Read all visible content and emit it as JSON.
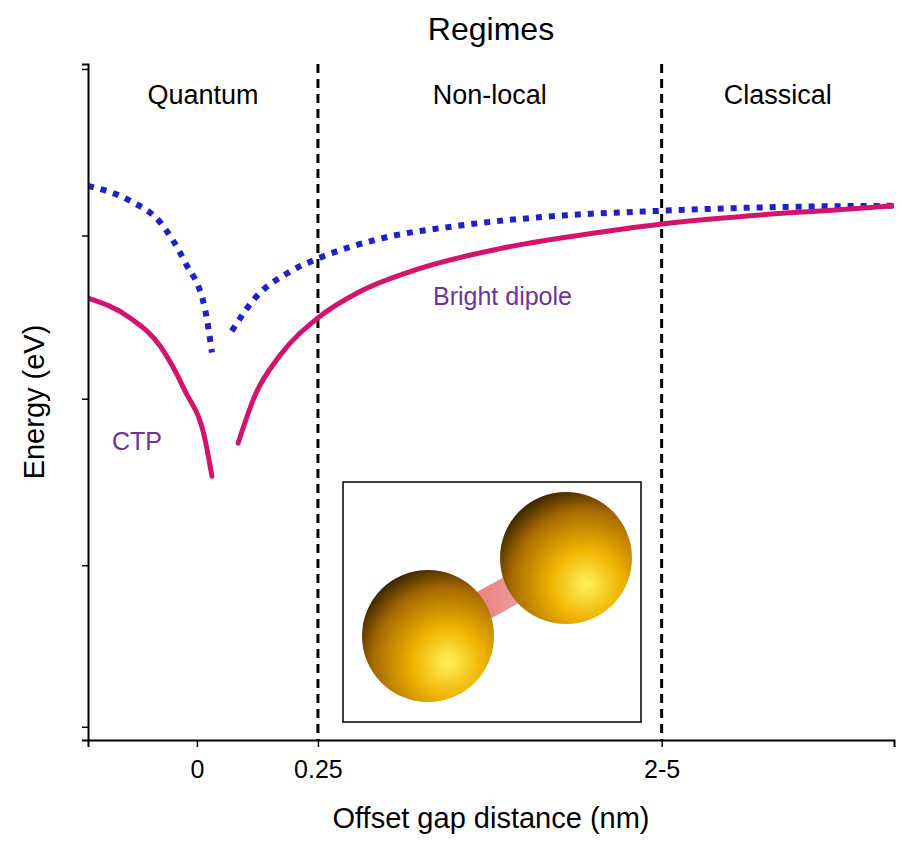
{
  "chart_data": {
    "type": "line",
    "title": "Regimes",
    "x_label": "Offset gap distance (nm)",
    "y_label": "Energy (eV)",
    "xlim": [
      -0.225,
      1.44
    ],
    "xticks": [
      {
        "value": 0,
        "label": "0"
      },
      0.25,
      {
        "value": 0.96,
        "label": "2-5"
      }
    ],
    "ylim": [
      0,
      4.1
    ],
    "yticks": [
      0.08,
      1.06,
      2.07,
      3.06,
      4.07
    ],
    "tick_labels": "x",
    "grid": false,
    "regime_boundaries": [
      0.25,
      0.96
    ],
    "regimes": [
      "Quantum",
      "Non-local",
      "Classical"
    ],
    "annotations": [
      "CTP",
      "Bright dipole"
    ],
    "series": [
      {
        "color": "#2020c8",
        "line_style": "dotted",
        "x": [
          -0.225,
          -0.138,
          -0.076,
          -0.025,
          0.017,
          0.031,
          0.05,
          0.072,
          0.12,
          0.192,
          0.25,
          0.378,
          0.543,
          0.75,
          0.961,
          1.163,
          1.44
        ],
        "values": [
          3.36,
          3.27,
          3.14,
          2.9,
          2.61,
          2.35,
          null,
          2.48,
          2.68,
          2.84,
          2.92,
          3.04,
          3.12,
          3.18,
          3.21,
          3.23,
          3.24
        ]
      },
      {
        "color": "#d4146a",
        "line_style": "solid",
        "x": [
          -0.225,
          -0.138,
          -0.076,
          -0.025,
          0.017,
          0.031,
          0.06,
          0.085,
          0.12,
          0.171,
          0.25,
          0.337,
          0.461,
          0.626,
          0.833,
          0.961,
          1.143,
          1.349,
          1.44
        ],
        "values": [
          2.68,
          2.56,
          2.39,
          2.12,
          1.82,
          1.6,
          null,
          1.8,
          2.09,
          2.33,
          2.56,
          2.72,
          2.86,
          2.98,
          3.08,
          3.13,
          3.18,
          3.22,
          3.24
        ]
      }
    ]
  }
}
